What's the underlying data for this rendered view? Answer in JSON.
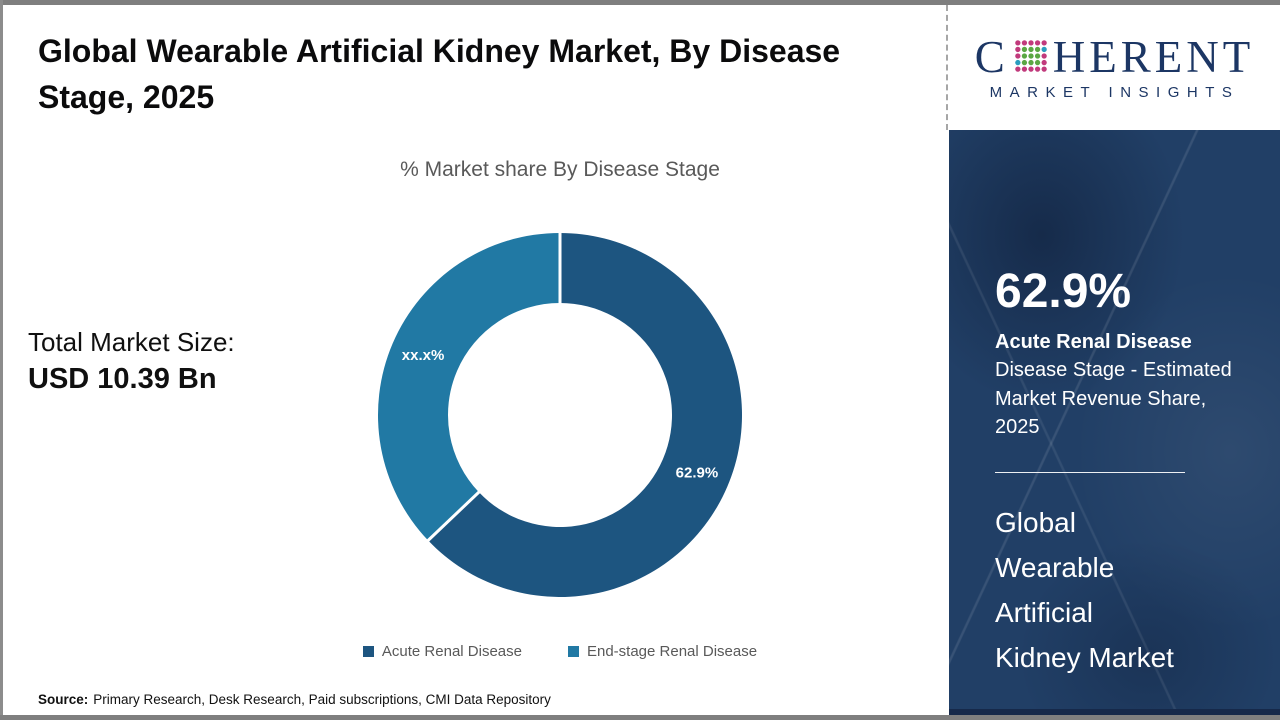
{
  "header": {
    "title": "Global Wearable Artificial Kidney Market, By Disease Stage, 2025"
  },
  "chart_data": {
    "type": "donut",
    "title": "% Market share By Disease Stage",
    "start_angle_deg": 0,
    "direction": "clockwise",
    "legend_position": "bottom",
    "slices": [
      {
        "label": "Acute Renal Disease",
        "value": 62.9,
        "display": "62.9%",
        "color": "#1d5580"
      },
      {
        "label": "End-stage Renal Disease",
        "value": 37.1,
        "display": "xx.x%",
        "color": "#2179a4"
      }
    ]
  },
  "total_market": {
    "label": "Total Market Size:",
    "value": "USD 10.39 Bn"
  },
  "source": {
    "prefix": "Source:",
    "text": "Primary Research, Desk Research, Paid subscriptions, CMI Data Repository"
  },
  "logo": {
    "part1": "C",
    "part2": "HERENT",
    "tagline": "MARKET INSIGHTS",
    "navy": "#1c3664",
    "globe_green": "#5aa743",
    "globe_pink": "#c13a7c",
    "globe_blue": "#2a9dbf"
  },
  "sidebar": {
    "stat_value": "62.9%",
    "stat_title": "Acute Renal Disease",
    "stat_desc": "Disease Stage - Estimated Market Revenue Share, 2025",
    "market_name_lines": [
      "Global",
      "Wearable",
      "Artificial",
      "Kidney Market"
    ],
    "bg_color": "#213f66"
  }
}
